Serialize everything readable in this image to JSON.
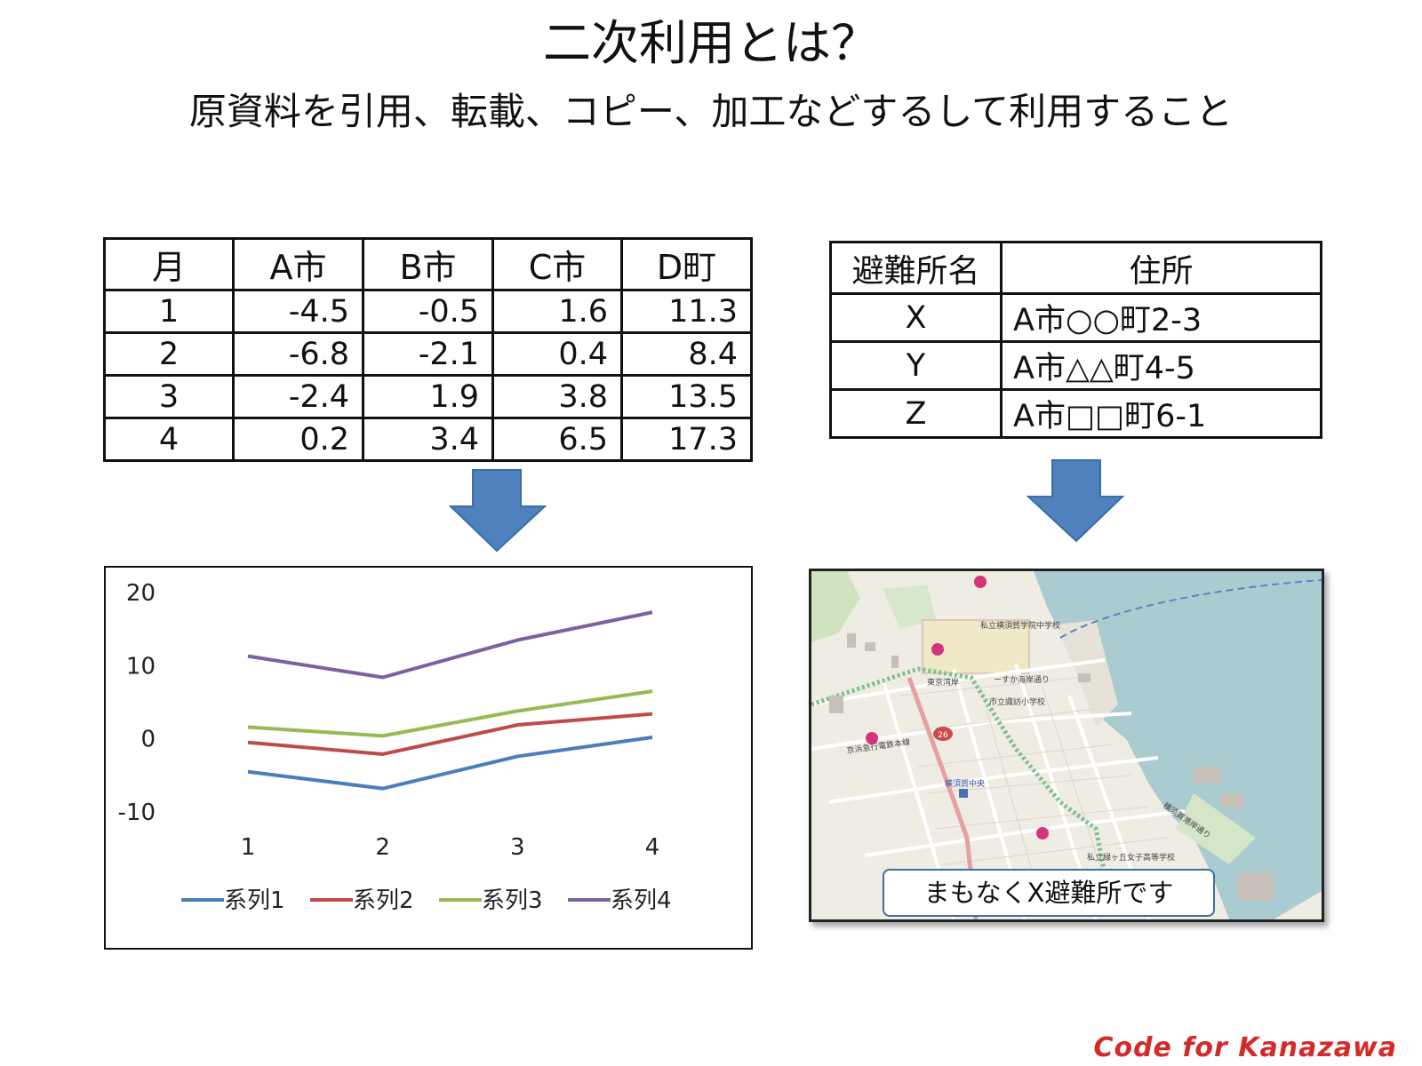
{
  "title": "二次利用とは？",
  "subtitle": "原資料を引用、転載、コピー、加工などするして利用すること",
  "temperature_table": {
    "headers": [
      "月",
      "A市",
      "B市",
      "C市",
      "D町"
    ],
    "rows": [
      [
        "1",
        "-4.5",
        "-0.5",
        "1.6",
        "11.3"
      ],
      [
        "2",
        "-6.8",
        "-2.1",
        "0.4",
        "8.4"
      ],
      [
        "3",
        "-2.4",
        "1.9",
        "3.8",
        "13.5"
      ],
      [
        "4",
        "0.2",
        "3.4",
        "6.5",
        "17.3"
      ]
    ]
  },
  "shelter_table": {
    "headers": [
      "避難所名",
      "住所"
    ],
    "rows": [
      [
        "X",
        "A市○○町2-3"
      ],
      [
        "Y",
        "A市△△町4-5"
      ],
      [
        "Z",
        "A市□□町6-1"
      ]
    ]
  },
  "chart_data": {
    "type": "line",
    "x": [
      1,
      2,
      3,
      4
    ],
    "tick_labels_x": [
      "1",
      "2",
      "3",
      "4"
    ],
    "tick_labels_y": [
      "20",
      "10",
      "0",
      "-10"
    ],
    "ylim": [
      -10,
      20
    ],
    "grid": false,
    "legend": "bottom",
    "series": [
      {
        "name": "系列1",
        "color": "#4a7ebb",
        "values": [
          -4.5,
          -6.8,
          -2.4,
          0.2
        ]
      },
      {
        "name": "系列2",
        "color": "#be4b48",
        "values": [
          -0.5,
          -2.1,
          1.9,
          3.4
        ]
      },
      {
        "name": "系列3",
        "color": "#98b954",
        "values": [
          1.6,
          0.4,
          3.8,
          6.5
        ]
      },
      {
        "name": "系列4",
        "color": "#7d60a0",
        "values": [
          11.3,
          8.4,
          13.5,
          17.3
        ]
      }
    ]
  },
  "map": {
    "callout": "まもなくX避難所です",
    "labels": [
      "東京湾岸",
      "横須賀中央",
      "私立横須賀学院中学校",
      "市立諏訪小学校",
      "ーすか海岸通り",
      "私立緑ヶ丘女子高等学校",
      "横須賀港岸通り",
      "京浜急行電鉄本線",
      "26"
    ]
  },
  "arrow_color": "#4f81bd",
  "brand": "Code for Kanazawa"
}
